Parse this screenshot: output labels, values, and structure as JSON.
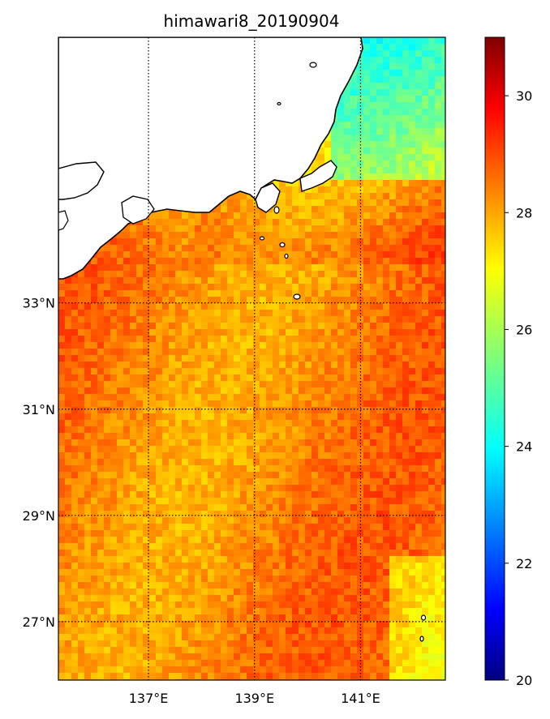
{
  "chart_data": {
    "type": "heatmap",
    "title": "himawari8_20190904",
    "x_ticks": [
      {
        "value": 137,
        "label": "137°E"
      },
      {
        "value": 139,
        "label": "139°E"
      },
      {
        "value": 141,
        "label": "141°E"
      }
    ],
    "y_ticks": [
      {
        "value": 33,
        "label": "33°N"
      },
      {
        "value": 31,
        "label": "31°N"
      },
      {
        "value": 29,
        "label": "29°N"
      },
      {
        "value": 27,
        "label": "27°N"
      }
    ],
    "xlim": [
      135.3,
      142.6
    ],
    "ylim": [
      25.9,
      38.0
    ],
    "gridlines": "dotted",
    "colorbar": {
      "colormap": "jet",
      "vmin": 20,
      "vmax": 31,
      "placement": "right",
      "ticks": [
        {
          "value": 20,
          "label": "20"
        },
        {
          "value": 22,
          "label": "22"
        },
        {
          "value": 24,
          "label": "24"
        },
        {
          "value": 26,
          "label": "26"
        },
        {
          "value": 28,
          "label": "28"
        },
        {
          "value": 30,
          "label": "30"
        }
      ]
    },
    "land_color": "#ffffff",
    "coastline_color": "#000000"
  }
}
